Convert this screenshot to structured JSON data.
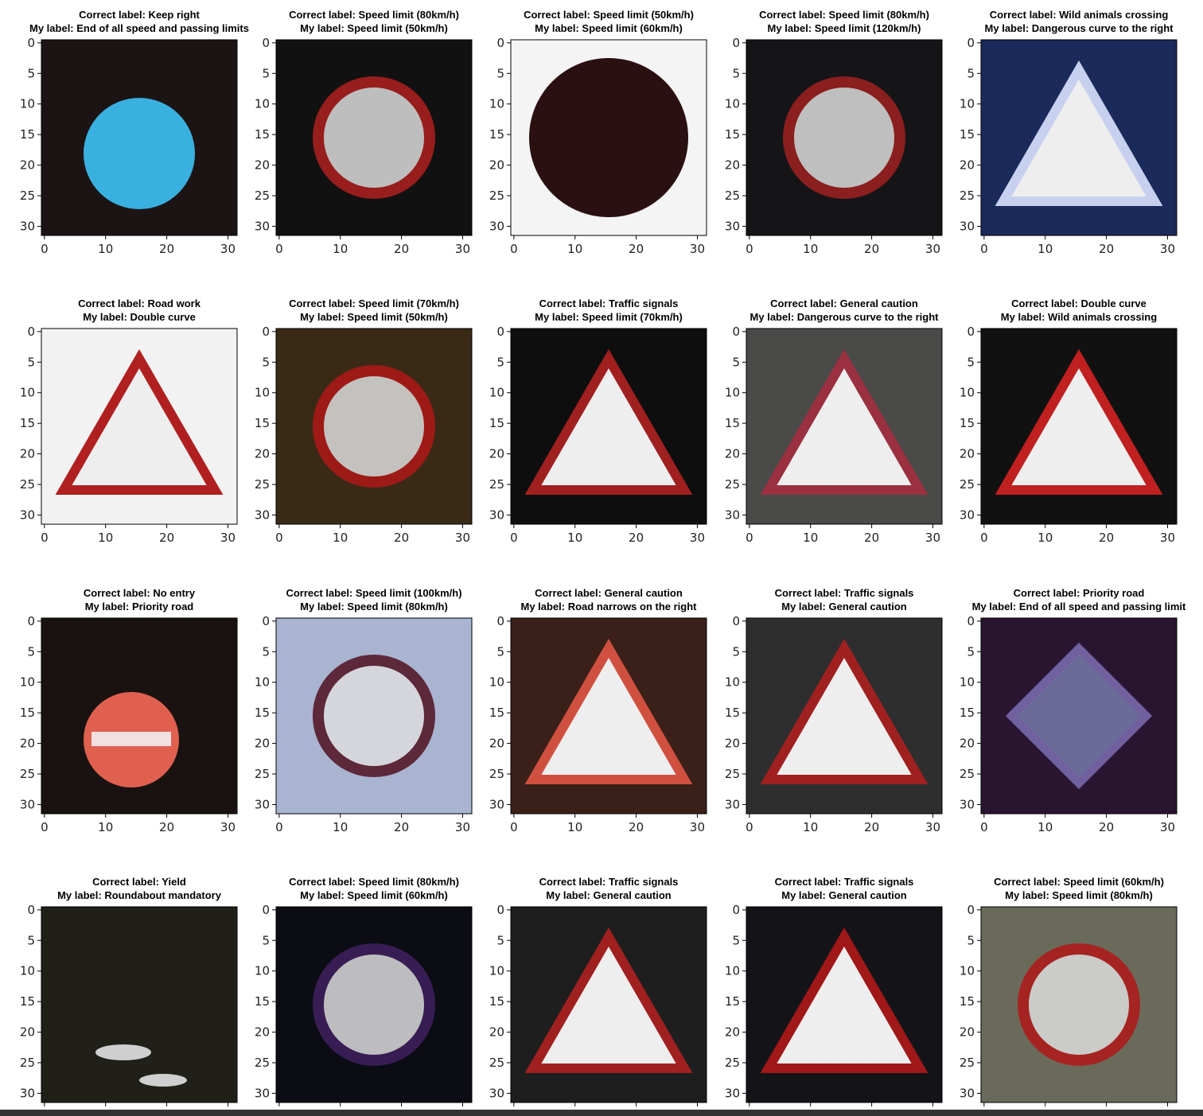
{
  "axes": {
    "xticks": [
      0,
      10,
      20,
      30
    ],
    "yticks": [
      0,
      5,
      10,
      15,
      20,
      25,
      30
    ]
  },
  "panels": [
    {
      "correct": "Correct label: Keep right",
      "mine": "My label: End of all speed and passing limits"
    },
    {
      "correct": "Correct label: Speed limit (80km/h)",
      "mine": "My label: Speed limit (50km/h)"
    },
    {
      "correct": "Correct label: Speed limit (50km/h)",
      "mine": "My label: Speed limit (60km/h)"
    },
    {
      "correct": "Correct label: Speed limit (80km/h)",
      "mine": "My label: Speed limit (120km/h)"
    },
    {
      "correct": "Correct label: Wild animals crossing",
      "mine": "My label: Dangerous curve to the right"
    },
    {
      "correct": "Correct label: Road work",
      "mine": "My label: Double curve"
    },
    {
      "correct": "Correct label: Speed limit (70km/h)",
      "mine": "My label: Speed limit (50km/h)"
    },
    {
      "correct": "Correct label: Traffic signals",
      "mine": "My label: Speed limit (70km/h)"
    },
    {
      "correct": "Correct label: General caution",
      "mine": "My label: Dangerous curve to the right"
    },
    {
      "correct": "Correct label: Double curve",
      "mine": "My label: Wild animals crossing"
    },
    {
      "correct": "Correct label: No entry",
      "mine": "My label: Priority road"
    },
    {
      "correct": "Correct label: Speed limit (100km/h)",
      "mine": "My label: Speed limit (80km/h)"
    },
    {
      "correct": "Correct label: General caution",
      "mine": "My label: Road narrows on the right"
    },
    {
      "correct": "Correct label: Traffic signals",
      "mine": "My label: General caution"
    },
    {
      "correct": "Correct label: Priority road",
      "mine": "My label: End of all speed and passing limit"
    },
    {
      "correct": "Correct label: Yield",
      "mine": "My label: Roundabout mandatory"
    },
    {
      "correct": "Correct label: Speed limit (80km/h)",
      "mine": "My label: Speed limit (60km/h)"
    },
    {
      "correct": "Correct label: Traffic signals",
      "mine": "My label: General caution"
    },
    {
      "correct": "Correct label: Traffic signals",
      "mine": "My label: General caution"
    },
    {
      "correct": "Correct label: Speed limit (60km/h)",
      "mine": "My label: Speed limit (80km/h)"
    }
  ]
}
